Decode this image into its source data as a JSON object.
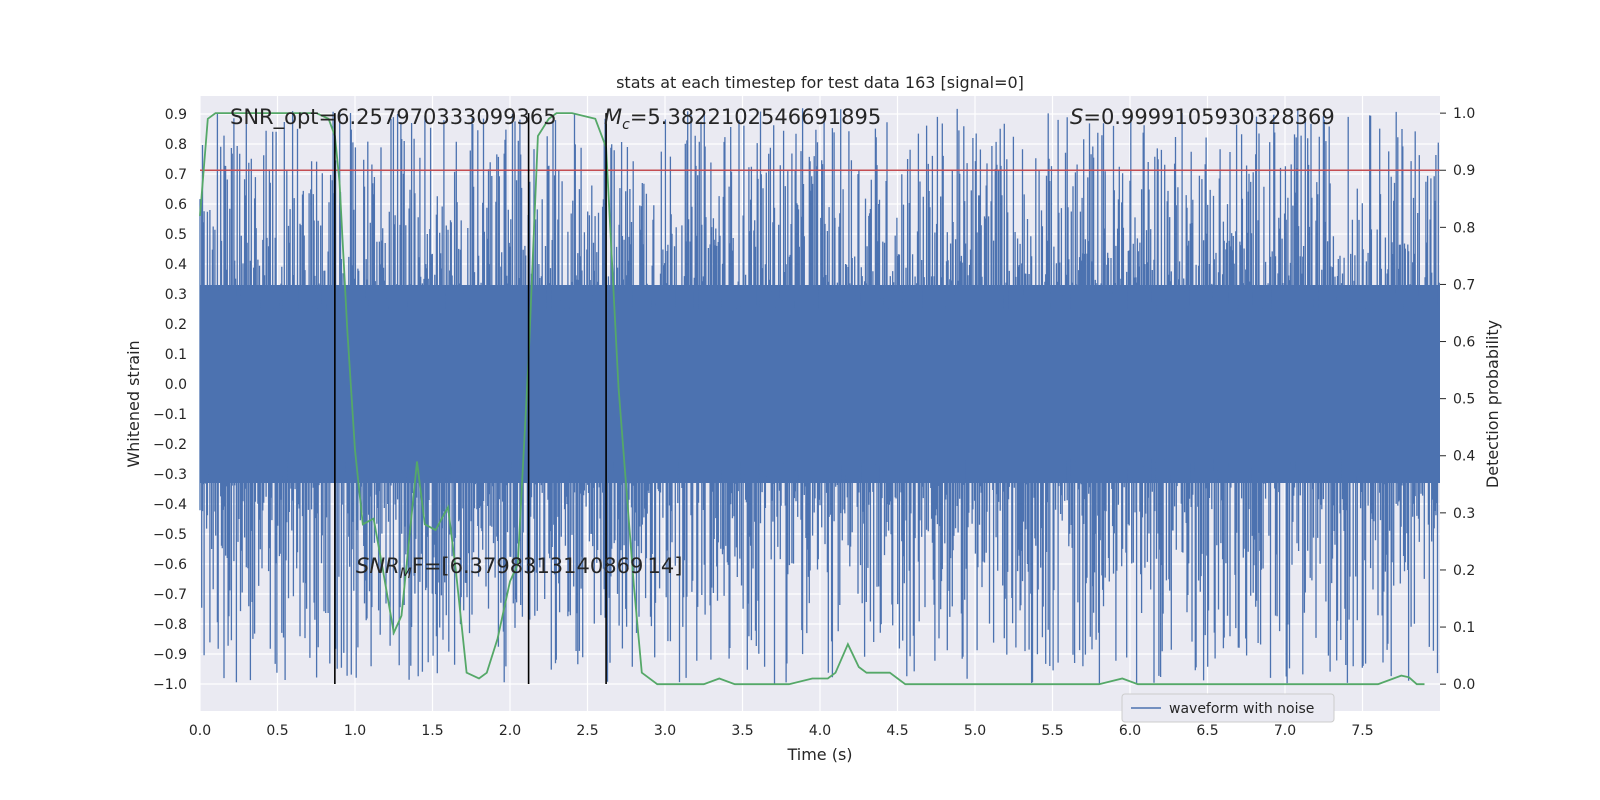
{
  "chart_data": {
    "type": "line",
    "title": "stats at each timestep for test data 163 [signal=0]",
    "xlabel": "Time (s)",
    "ylabel_left": "Whitened strain",
    "ylabel_right": "Detection probability",
    "xlim": [
      0.0,
      8.0
    ],
    "ylim_left": [
      -1.09,
      0.96
    ],
    "ylim_right": [
      -0.047,
      1.03
    ],
    "grid": true,
    "x_ticks": [
      "0.0",
      "0.5",
      "1.0",
      "1.5",
      "2.0",
      "2.5",
      "3.0",
      "3.5",
      "4.0",
      "4.5",
      "5.0",
      "5.5",
      "6.0",
      "6.5",
      "7.0",
      "7.5"
    ],
    "y_left_ticks": [
      "0.9",
      "0.8",
      "0.7",
      "0.6",
      "0.5",
      "0.4",
      "0.3",
      "0.2",
      "0.1",
      "0.0",
      "−0.1",
      "−0.2",
      "−0.3",
      "−0.4",
      "−0.5",
      "−0.6",
      "−0.7",
      "−0.8",
      "−0.9",
      "−1.0"
    ],
    "y_right_ticks": [
      "1.0",
      "0.9",
      "0.8",
      "0.7",
      "0.6",
      "0.5",
      "0.4",
      "0.3",
      "0.2",
      "0.1",
      "0.0"
    ],
    "annotations": {
      "snr_opt": "SNR_opt=6.257970333099365",
      "mc_symbol": "M",
      "mc_sub": "c",
      "mc_value": "=5.3822102546691895",
      "s_symbol": "S",
      "s_value": "=0.9999105930328369",
      "snr_mf_symbol": "SNR",
      "snr_mf_sub": "M",
      "snr_mf_value": "F=[6.3798313140869 14]"
    },
    "legend": {
      "label": "waveform with noise",
      "placement": "lower-right"
    },
    "threshold": {
      "value": 0.9,
      "axis": "right",
      "color": "#c44e52"
    },
    "vertical_lines_x": [
      0.87,
      2.12,
      2.62
    ],
    "waveform": {
      "name": "waveform with noise",
      "color": "#4c72b0",
      "core_band": [
        -0.33,
        0.33
      ],
      "peak_range_pos": [
        0.25,
        0.92
      ],
      "peak_range_neg": [
        -0.25,
        -1.0
      ]
    },
    "series": [
      {
        "name": "",
        "axis": "right",
        "color": "#55a868",
        "x": [
          0.0,
          0.05,
          0.1,
          0.2,
          0.3,
          0.5,
          0.6,
          0.75,
          0.83,
          0.87,
          0.9,
          0.95,
          1.0,
          1.05,
          1.12,
          1.18,
          1.25,
          1.3,
          1.4,
          1.45,
          1.52,
          1.6,
          1.65,
          1.72,
          1.8,
          1.85,
          1.92,
          2.0,
          2.05,
          2.12,
          2.18,
          2.25,
          2.3,
          2.4,
          2.55,
          2.62,
          2.7,
          2.8,
          2.85,
          2.95,
          3.05,
          3.25,
          3.35,
          3.45,
          3.6,
          3.8,
          3.95,
          4.05,
          4.1,
          4.18,
          4.25,
          4.3,
          4.4,
          4.45,
          4.55,
          4.7,
          4.9,
          5.1,
          5.25,
          5.4,
          5.6,
          5.8,
          5.95,
          6.05,
          6.2,
          6.4,
          6.6,
          6.8,
          7.0,
          7.2,
          7.4,
          7.6,
          7.7,
          7.75,
          7.8,
          7.85,
          7.9
        ],
        "values": [
          0.82,
          0.99,
          1.0,
          1.0,
          1.0,
          1.0,
          1.0,
          1.0,
          0.99,
          0.96,
          0.88,
          0.62,
          0.41,
          0.28,
          0.29,
          0.2,
          0.09,
          0.12,
          0.39,
          0.28,
          0.27,
          0.31,
          0.2,
          0.02,
          0.01,
          0.02,
          0.08,
          0.18,
          0.21,
          0.57,
          0.96,
          0.99,
          1.0,
          1.0,
          0.99,
          0.94,
          0.52,
          0.17,
          0.02,
          0.0,
          0.0,
          0.0,
          0.01,
          0.0,
          0.0,
          0.0,
          0.01,
          0.01,
          0.02,
          0.07,
          0.03,
          0.02,
          0.02,
          0.02,
          0.0,
          0.0,
          0.0,
          0.0,
          0.0,
          0.0,
          0.0,
          0.0,
          0.01,
          0.0,
          0.0,
          0.0,
          0.0,
          0.0,
          0.0,
          0.0,
          0.0,
          0.0,
          0.01,
          0.015,
          0.012,
          0.0,
          0.0
        ]
      }
    ]
  }
}
